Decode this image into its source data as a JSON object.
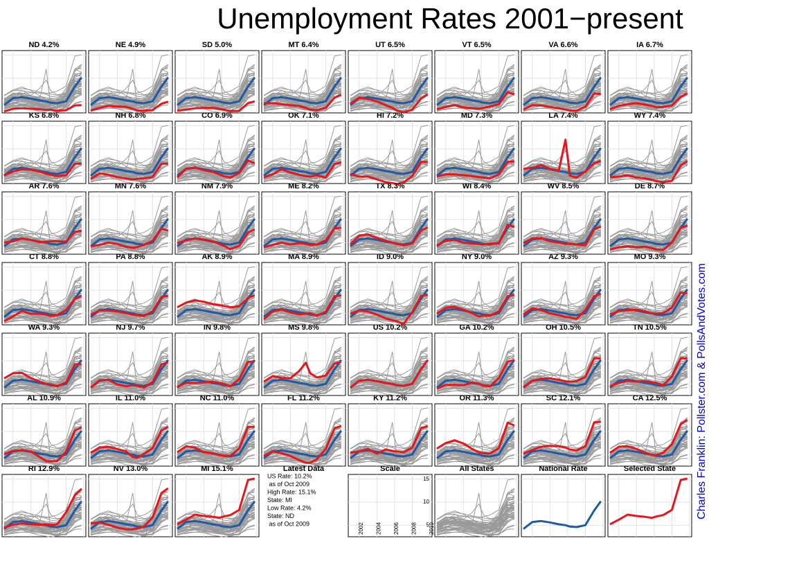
{
  "chart_data": {
    "type": "line",
    "title": "Unemployment Rates 2001−present",
    "credit": "Charles Franklin: Pollster.com & PollsAndVotes.com",
    "x": [
      2001,
      2002,
      2003,
      2004,
      2005,
      2005.75,
      2006.25,
      2007,
      2008,
      2009,
      2009.75
    ],
    "xlim": [
      2001,
      2010
    ],
    "ylim": [
      2.5,
      16
    ],
    "xticks": [
      2002,
      2004,
      2006,
      2008,
      2010
    ],
    "yticks": [
      5,
      10,
      15
    ],
    "grid": true,
    "series_color": "#e8151b",
    "national_color": "#1f5aa6",
    "background_color": "#9a9a9a",
    "credit_color": "#0000cc",
    "national": {
      "name": "US",
      "values": [
        4.2,
        5.7,
        5.9,
        5.6,
        5.2,
        5.0,
        4.7,
        4.6,
        5.0,
        8.2,
        10.2
      ]
    },
    "series": [
      {
        "name": "ND 4.2%",
        "values": [
          2.8,
          3.4,
          3.5,
          3.4,
          3.3,
          3.1,
          3.2,
          3.0,
          3.1,
          4.1,
          4.2
        ]
      },
      {
        "name": "NE 4.9%",
        "values": [
          3.0,
          3.6,
          4.0,
          3.9,
          3.8,
          3.4,
          3.0,
          3.0,
          3.1,
          4.5,
          4.9
        ]
      },
      {
        "name": "SD 5.0%",
        "values": [
          3.0,
          3.2,
          3.5,
          3.6,
          3.6,
          3.4,
          3.2,
          2.9,
          2.9,
          4.6,
          5.0
        ]
      },
      {
        "name": "MT 6.4%",
        "values": [
          4.6,
          4.6,
          4.4,
          4.2,
          4.0,
          3.6,
          3.2,
          3.1,
          3.6,
          5.8,
          6.4
        ]
      },
      {
        "name": "UT 6.5%",
        "values": [
          4.5,
          5.8,
          5.5,
          5.0,
          4.2,
          3.6,
          3.0,
          2.6,
          3.2,
          5.6,
          6.5
        ]
      },
      {
        "name": "VT 6.5%",
        "values": [
          3.3,
          3.8,
          4.2,
          3.7,
          3.5,
          3.4,
          3.6,
          3.9,
          4.4,
          7.0,
          6.5
        ]
      },
      {
        "name": "VA 6.6%",
        "values": [
          3.2,
          4.2,
          4.1,
          3.8,
          3.5,
          3.2,
          3.0,
          3.0,
          3.8,
          6.7,
          6.6
        ]
      },
      {
        "name": "IA 6.7%",
        "values": [
          3.3,
          4.0,
          4.4,
          4.6,
          4.3,
          4.0,
          3.7,
          3.8,
          4.1,
          6.0,
          6.7
        ]
      },
      {
        "name": "KS 6.8%",
        "values": [
          4.3,
          5.1,
          5.6,
          5.5,
          5.1,
          4.6,
          4.4,
          4.1,
          4.3,
          6.8,
          6.8
        ]
      },
      {
        "name": "NH 6.8%",
        "values": [
          3.5,
          4.7,
          4.4,
          3.9,
          3.6,
          3.4,
          3.5,
          3.6,
          3.9,
          6.8,
          6.8
        ]
      },
      {
        "name": "CO 6.9%",
        "values": [
          3.8,
          5.7,
          6.0,
          5.4,
          5.0,
          4.5,
          4.1,
          3.8,
          4.8,
          7.5,
          6.9
        ]
      },
      {
        "name": "OK 7.1%",
        "values": [
          3.8,
          4.5,
          5.6,
          4.9,
          4.4,
          4.1,
          4.0,
          4.3,
          3.8,
          6.7,
          7.1
        ]
      },
      {
        "name": "HI 7.2%",
        "values": [
          4.6,
          4.0,
          4.0,
          3.4,
          2.8,
          2.6,
          2.4,
          2.7,
          4.1,
          7.2,
          7.2
        ]
      },
      {
        "name": "MD 7.3%",
        "values": [
          4.0,
          4.5,
          4.5,
          4.3,
          4.1,
          3.9,
          3.8,
          3.6,
          4.5,
          7.2,
          7.3
        ]
      },
      {
        "name": "LA 7.4%",
        "values": [
          5.7,
          5.9,
          6.5,
          5.7,
          5.3,
          12.0,
          4.2,
          3.8,
          5.1,
          6.9,
          7.4
        ]
      },
      {
        "name": "WY 7.4%",
        "values": [
          3.9,
          4.0,
          4.3,
          3.8,
          3.6,
          3.3,
          3.0,
          2.8,
          3.1,
          6.4,
          7.4
        ]
      },
      {
        "name": "AR 7.6%",
        "values": [
          5.0,
          5.3,
          5.9,
          5.6,
          5.1,
          5.2,
          5.3,
          5.3,
          5.2,
          7.3,
          7.6
        ]
      },
      {
        "name": "MN 7.6%",
        "values": [
          4.2,
          4.5,
          5.0,
          4.7,
          4.1,
          3.9,
          4.0,
          4.5,
          5.4,
          8.0,
          7.6
        ]
      },
      {
        "name": "NM 7.9%",
        "values": [
          4.9,
          5.5,
          5.9,
          5.7,
          5.3,
          4.7,
          4.3,
          3.6,
          4.3,
          7.2,
          7.9
        ]
      },
      {
        "name": "ME 8.2%",
        "values": [
          4.0,
          4.5,
          5.0,
          4.6,
          4.9,
          4.7,
          4.5,
          4.6,
          5.5,
          8.1,
          8.2
        ]
      },
      {
        "name": "TX 8.3%",
        "values": [
          4.6,
          6.5,
          6.8,
          6.0,
          5.4,
          5.0,
          4.8,
          4.4,
          4.8,
          7.6,
          8.3
        ]
      },
      {
        "name": "WI 8.4%",
        "values": [
          4.4,
          5.4,
          5.6,
          5.0,
          4.8,
          4.7,
          4.6,
          4.8,
          4.8,
          8.9,
          8.4
        ]
      },
      {
        "name": "WV 8.5%",
        "values": [
          4.9,
          5.9,
          6.0,
          5.3,
          5.0,
          4.7,
          4.8,
          4.6,
          4.4,
          7.9,
          8.5
        ]
      },
      {
        "name": "DE 8.7%",
        "values": [
          3.5,
          4.0,
          4.2,
          4.0,
          4.1,
          3.8,
          3.5,
          3.4,
          5.0,
          8.2,
          8.7
        ]
      },
      {
        "name": "CT 8.8%",
        "values": [
          3.3,
          4.3,
          5.5,
          4.9,
          4.9,
          4.7,
          4.4,
          4.6,
          5.7,
          8.1,
          8.8
        ]
      },
      {
        "name": "PA 8.8%",
        "values": [
          4.7,
          5.6,
          5.6,
          5.4,
          5.0,
          4.7,
          4.6,
          4.4,
          5.4,
          8.5,
          8.8
        ]
      },
      {
        "name": "AK 8.9%",
        "values": [
          6.3,
          7.3,
          7.8,
          7.5,
          7.0,
          6.8,
          6.6,
          6.3,
          6.5,
          8.3,
          8.9
        ]
      },
      {
        "name": "MA 8.9%",
        "values": [
          3.7,
          5.4,
          5.8,
          5.2,
          4.8,
          4.9,
          5.0,
          4.5,
          5.3,
          8.7,
          8.9
        ]
      },
      {
        "name": "ID 9.0%",
        "values": [
          4.9,
          5.6,
          5.4,
          4.7,
          3.9,
          3.5,
          3.3,
          2.7,
          5.2,
          8.8,
          9.0
        ]
      },
      {
        "name": "NY 9.0%",
        "values": [
          4.9,
          6.2,
          6.4,
          5.8,
          5.0,
          4.3,
          4.5,
          4.5,
          5.4,
          8.7,
          9.0
        ]
      },
      {
        "name": "AZ 9.3%",
        "values": [
          4.7,
          6.1,
          5.7,
          5.0,
          4.6,
          4.2,
          4.1,
          3.8,
          5.7,
          8.7,
          9.3
        ]
      },
      {
        "name": "MO 9.3%",
        "values": [
          4.7,
          5.5,
          5.7,
          5.8,
          5.4,
          5.0,
          4.9,
          5.0,
          6.2,
          9.5,
          9.3
        ]
      },
      {
        "name": "WA 9.3%",
        "values": [
          6.2,
          7.3,
          7.4,
          6.3,
          5.5,
          5.0,
          4.9,
          4.5,
          5.3,
          9.2,
          9.3
        ]
      },
      {
        "name": "NJ 9.7%",
        "values": [
          4.2,
          5.8,
          5.9,
          4.9,
          4.5,
          4.7,
          4.6,
          4.2,
          5.4,
          9.2,
          9.7
        ]
      },
      {
        "name": "IN 9.8%",
        "values": [
          4.4,
          5.2,
          5.2,
          5.3,
          5.5,
          5.2,
          5.0,
          4.5,
          6.0,
          9.8,
          9.8
        ]
      },
      {
        "name": "MS 9.8%",
        "values": [
          5.5,
          6.7,
          6.3,
          6.2,
          7.8,
          9.6,
          7.3,
          6.4,
          6.8,
          9.4,
          9.8
        ]
      },
      {
        "name": "US 10.2%",
        "values": [
          4.2,
          5.7,
          5.9,
          5.6,
          5.2,
          5.0,
          4.7,
          4.6,
          5.0,
          8.2,
          10.2
        ]
      },
      {
        "name": "GA 10.2%",
        "values": [
          4.0,
          4.8,
          4.8,
          4.7,
          5.3,
          5.1,
          4.6,
          4.5,
          6.2,
          9.8,
          10.2
        ]
      },
      {
        "name": "OH 10.5%",
        "values": [
          4.3,
          5.7,
          6.1,
          6.2,
          5.9,
          5.5,
          5.5,
          5.6,
          6.5,
          10.6,
          10.5
        ]
      },
      {
        "name": "TN 10.5%",
        "values": [
          4.5,
          5.2,
          5.7,
          5.5,
          5.6,
          5.4,
          5.2,
          4.7,
          6.6,
          10.6,
          10.5
        ]
      },
      {
        "name": "AL 10.9%",
        "values": [
          5.1,
          5.8,
          6.0,
          5.7,
          4.5,
          3.6,
          3.5,
          3.6,
          5.6,
          10.2,
          10.9
        ]
      },
      {
        "name": "IL 11.0%",
        "values": [
          5.4,
          6.5,
          6.7,
          6.2,
          5.7,
          4.5,
          4.3,
          5.1,
          6.4,
          10.2,
          11.0
        ]
      },
      {
        "name": "NC 11.0%",
        "values": [
          5.5,
          6.8,
          6.5,
          5.5,
          5.3,
          4.9,
          4.8,
          4.7,
          6.3,
          11.0,
          11.0
        ]
      },
      {
        "name": "FL 11.2%",
        "values": [
          4.7,
          5.7,
          5.3,
          4.7,
          3.8,
          3.2,
          3.2,
          4.0,
          6.2,
          10.7,
          11.2
        ]
      },
      {
        "name": "KY 11.2%",
        "values": [
          5.4,
          5.7,
          6.2,
          5.2,
          6.1,
          5.8,
          5.7,
          5.5,
          6.5,
          10.7,
          11.2
        ]
      },
      {
        "name": "OR 11.3%",
        "values": [
          6.3,
          7.5,
          8.1,
          7.4,
          6.2,
          5.5,
          5.3,
          5.2,
          6.4,
          11.9,
          11.3
        ]
      },
      {
        "name": "SC 12.1%",
        "values": [
          5.2,
          6.0,
          6.7,
          6.9,
          6.8,
          6.5,
          6.1,
          5.9,
          6.8,
          12.0,
          12.1
        ]
      },
      {
        "name": "CA 12.5%",
        "values": [
          5.4,
          6.7,
          6.8,
          6.2,
          5.4,
          4.9,
          4.9,
          5.4,
          7.2,
          11.6,
          12.5
        ]
      },
      {
        "name": "RI 12.9%",
        "values": [
          4.5,
          5.1,
          5.4,
          5.2,
          5.1,
          5.2,
          5.1,
          5.2,
          7.8,
          11.5,
          12.9
        ]
      },
      {
        "name": "NV 13.0%",
        "values": [
          5.4,
          5.6,
          5.1,
          4.5,
          4.1,
          4.1,
          4.3,
          4.7,
          6.7,
          12.0,
          13.0
        ]
      },
      {
        "name": "MI 15.1%",
        "values": [
          5.2,
          6.2,
          7.3,
          7.0,
          6.8,
          6.6,
          6.9,
          7.2,
          8.3,
          14.8,
          15.1
        ]
      }
    ],
    "latest_title": "Latest Data",
    "latest_lines": [
      "US Rate: 10.2%",
      " as of Oct 2009",
      "High Rate: 15.1%",
      "State: MI",
      "Low Rate: 4.2%",
      "State: ND",
      " as of Oct 2009"
    ],
    "scale_title": "Scale",
    "all_states_title": "All States",
    "national_title": "National Rate",
    "selected_title": "Selected State"
  }
}
